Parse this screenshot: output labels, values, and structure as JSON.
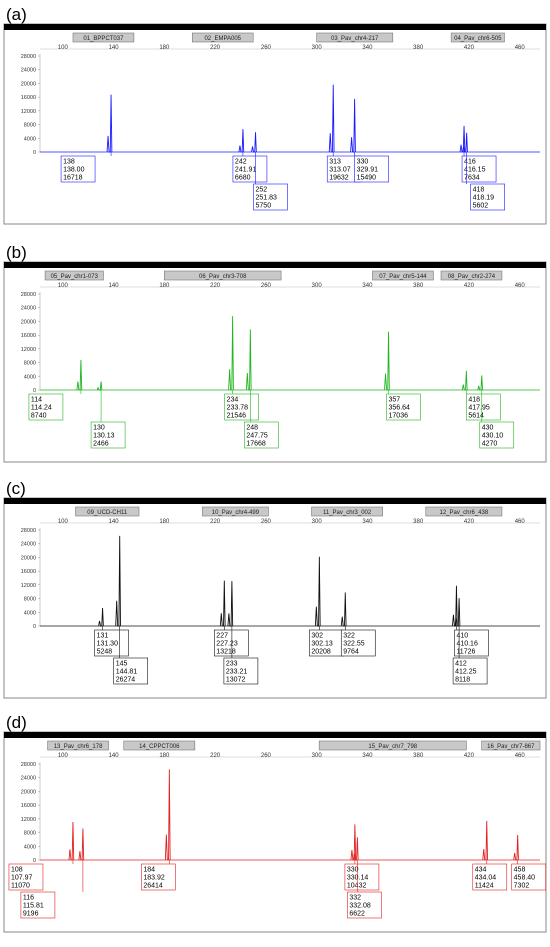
{
  "chart_data": [
    {
      "type": "line",
      "tag": "(a)",
      "color": "#1a1aff",
      "x_ticks": [
        100,
        140,
        180,
        220,
        260,
        300,
        340,
        380,
        420,
        460
      ],
      "y_ticks": [
        0,
        4000,
        8000,
        12000,
        16000,
        20000,
        24000,
        28000
      ],
      "xlim": [
        82,
        476
      ],
      "ylim": [
        0,
        28000
      ],
      "markers": [
        {
          "label": "01_BPPCT037",
          "from": 108,
          "to": 156
        },
        {
          "label": "02_EMPA005",
          "from": 202,
          "to": 250
        },
        {
          "label": "03_Pav_chr4-217",
          "from": 300,
          "to": 360
        },
        {
          "label": "04_Pav_chr6-505",
          "from": 406,
          "to": 448
        }
      ],
      "peaks": [
        {
          "allele": "138",
          "size": "138.00",
          "height": "16718",
          "x": 138.0,
          "y": 16718
        },
        {
          "allele": "242",
          "size": "241.91",
          "height": "6680",
          "x": 241.91,
          "y": 6680
        },
        {
          "allele": "252",
          "size": "251.83",
          "height": "5750",
          "x": 251.83,
          "y": 5750
        },
        {
          "allele": "313",
          "size": "313.07",
          "height": "19632",
          "x": 313.07,
          "y": 19632
        },
        {
          "allele": "330",
          "size": "329.91",
          "height": "15490",
          "x": 329.91,
          "y": 15490
        },
        {
          "allele": "416",
          "size": "416.15",
          "height": "7634",
          "x": 416.15,
          "y": 7634
        },
        {
          "allele": "418",
          "size": "418.19",
          "height": "5602",
          "x": 418.19,
          "y": 5602
        }
      ]
    },
    {
      "type": "line",
      "tag": "(b)",
      "color": "#22b422",
      "x_ticks": [
        100,
        140,
        180,
        220,
        260,
        300,
        340,
        380,
        420,
        460
      ],
      "y_ticks": [
        0,
        4000,
        8000,
        12000,
        16000,
        20000,
        24000,
        28000
      ],
      "xlim": [
        82,
        476
      ],
      "ylim": [
        0,
        28000
      ],
      "markers": [
        {
          "label": "05_Pav_chr1-073",
          "from": 86,
          "to": 132
        },
        {
          "label": "06_Pav_chr3-708",
          "from": 180,
          "to": 272
        },
        {
          "label": "07_Pav_chr5-144",
          "from": 344,
          "to": 392
        },
        {
          "label": "08_Pav_chr2-274",
          "from": 398,
          "to": 446
        }
      ],
      "peaks": [
        {
          "allele": "114",
          "size": "114.24",
          "height": "8740",
          "x": 114.24,
          "y": 8740
        },
        {
          "allele": "130",
          "size": "130.13",
          "height": "2466",
          "x": 130.13,
          "y": 2466
        },
        {
          "allele": "234",
          "size": "233.78",
          "height": "21546",
          "x": 233.78,
          "y": 21546
        },
        {
          "allele": "248",
          "size": "247.75",
          "height": "17668",
          "x": 247.75,
          "y": 17668
        },
        {
          "allele": "357",
          "size": "356.64",
          "height": "17036",
          "x": 356.64,
          "y": 17036
        },
        {
          "allele": "418",
          "size": "417.95",
          "height": "5614",
          "x": 417.95,
          "y": 5614
        },
        {
          "allele": "430",
          "size": "430.10",
          "height": "4270",
          "x": 430.1,
          "y": 4270
        }
      ]
    },
    {
      "type": "line",
      "tag": "(c)",
      "color": "#111111",
      "x_ticks": [
        100,
        140,
        180,
        220,
        260,
        300,
        340,
        380,
        420,
        460
      ],
      "y_ticks": [
        0,
        4000,
        8000,
        12000,
        16000,
        20000,
        24000,
        28000
      ],
      "xlim": [
        82,
        476
      ],
      "ylim": [
        0,
        28000
      ],
      "markers": [
        {
          "label": "09_UCD-CH11",
          "from": 110,
          "to": 160
        },
        {
          "label": "10_Pav_chr4-499",
          "from": 210,
          "to": 262
        },
        {
          "label": "11_Pav_chr3_002",
          "from": 296,
          "to": 352
        },
        {
          "label": "12_Pav_chr6_438",
          "from": 386,
          "to": 446
        }
      ],
      "peaks": [
        {
          "allele": "131",
          "size": "131.30",
          "height": "5248",
          "x": 131.3,
          "y": 5248
        },
        {
          "allele": "145",
          "size": "144.81",
          "height": "26274",
          "x": 144.81,
          "y": 26274
        },
        {
          "allele": "227",
          "size": "227.23",
          "height": "13218",
          "x": 227.23,
          "y": 13218
        },
        {
          "allele": "233",
          "size": "233.21",
          "height": "13072",
          "x": 233.21,
          "y": 13072
        },
        {
          "allele": "302",
          "size": "302.13",
          "height": "20208",
          "x": 302.13,
          "y": 20208
        },
        {
          "allele": "322",
          "size": "322.55",
          "height": "9764",
          "x": 322.55,
          "y": 9764
        },
        {
          "allele": "410",
          "size": "410.16",
          "height": "11726",
          "x": 410.16,
          "y": 11726
        },
        {
          "allele": "412",
          "size": "412.25",
          "height": "8118",
          "x": 412.25,
          "y": 8118
        }
      ]
    },
    {
      "type": "line",
      "tag": "(d)",
      "color": "#e02222",
      "x_ticks": [
        100,
        140,
        180,
        220,
        260,
        300,
        340,
        380,
        420,
        460
      ],
      "y_ticks": [
        0,
        4000,
        8000,
        12000,
        16000,
        20000,
        24000,
        28000
      ],
      "xlim": [
        82,
        476
      ],
      "ylim": [
        0,
        28000
      ],
      "markers": [
        {
          "label": "13_Pav_chr6_178",
          "from": 88,
          "to": 136
        },
        {
          "label": "14_CPPCT006",
          "from": 148,
          "to": 204
        },
        {
          "label": "15_Pav_chr7_798",
          "from": 302,
          "to": 418
        },
        {
          "label": "16_Pav_chr7-867",
          "from": 430,
          "to": 476
        }
      ],
      "peaks": [
        {
          "allele": "108",
          "size": "107.97",
          "height": "11070",
          "x": 107.97,
          "y": 11070
        },
        {
          "allele": "116",
          "size": "115.81",
          "height": "9196",
          "x": 115.81,
          "y": 9196
        },
        {
          "allele": "184",
          "size": "183.92",
          "height": "26414",
          "x": 183.92,
          "y": 26414
        },
        {
          "allele": "330",
          "size": "330.14",
          "height": "10432",
          "x": 330.14,
          "y": 10432
        },
        {
          "allele": "332",
          "size": "332.08",
          "height": "6622",
          "x": 332.08,
          "y": 6622
        },
        {
          "allele": "434",
          "size": "434.04",
          "height": "11424",
          "x": 434.04,
          "y": 11424
        },
        {
          "allele": "458",
          "size": "458.40",
          "height": "7302",
          "x": 458.4,
          "y": 7302
        }
      ]
    }
  ]
}
